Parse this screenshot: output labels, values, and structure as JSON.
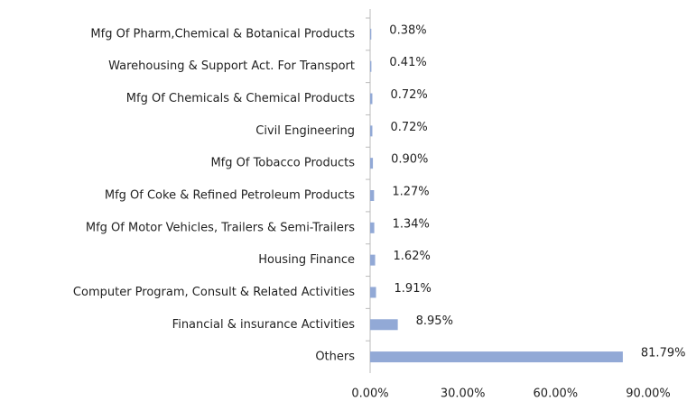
{
  "chart_data": {
    "type": "barh",
    "categories": [
      "Mfg Of Pharm,Chemical & Botanical Products",
      "Warehousing & Support Act. For Transport",
      "Mfg Of Chemicals & Chemical Products",
      "Civil Engineering",
      "Mfg Of Tobacco Products",
      "Mfg Of Coke & Refined Petroleum Products",
      "Mfg Of Motor Vehicles, Trailers & Semi-Trailers",
      "Housing Finance",
      "Computer Program, Consult & Related Activities",
      "Financial & insurance Activities",
      "Others"
    ],
    "values": [
      0.38,
      0.41,
      0.72,
      0.72,
      0.9,
      1.27,
      1.34,
      1.62,
      1.91,
      8.95,
      81.79
    ],
    "value_labels": [
      "0.38%",
      "0.41%",
      "0.72%",
      "0.72%",
      "0.90%",
      "1.27%",
      "1.34%",
      "1.62%",
      "1.91%",
      "8.95%",
      "81.79%"
    ],
    "color": "#92a9d6",
    "xlim": [
      0,
      90
    ],
    "xticks": [
      {
        "value": 0,
        "label": "0.00%"
      },
      {
        "value": 30,
        "label": "30.00%"
      },
      {
        "value": 60,
        "label": "60.00%"
      },
      {
        "value": 90,
        "label": "90.00%"
      }
    ]
  }
}
